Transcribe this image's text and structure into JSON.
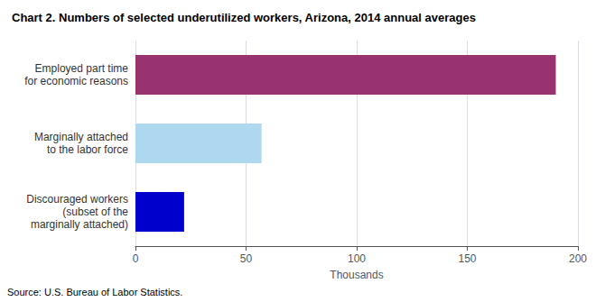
{
  "chart_data": {
    "type": "bar",
    "orientation": "horizontal",
    "title": "Chart 2. Numbers of selected underutilized workers, Arizona, 2014 annual averages",
    "categories": [
      "Discouraged workers\n(subset of the\nmarginally attached)",
      "Marginally attached\nto the labor force",
      "Employed part time\nfor economic reasons"
    ],
    "values": [
      22,
      57,
      190
    ],
    "colors": [
      "#0000cc",
      "#add8f0",
      "#993370"
    ],
    "xlabel": "Thousands",
    "xlim": [
      0,
      200
    ],
    "xticks": [
      0,
      50,
      100,
      150,
      200
    ],
    "grid": true,
    "source": "Source: U.S. Bureau of Labor Statistics."
  }
}
